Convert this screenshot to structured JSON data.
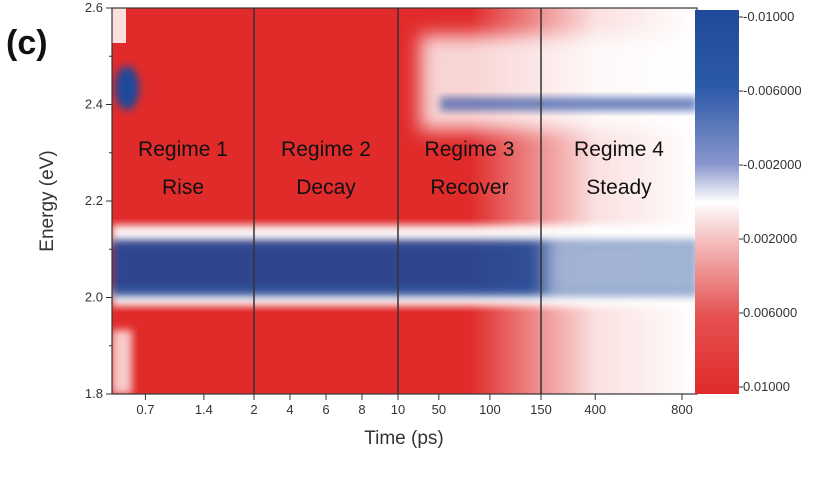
{
  "panel_label": "(c)",
  "chart_data": {
    "type": "heatmap",
    "xlabel": "Time (ps)",
    "ylabel": "Energy (eV)",
    "ylim": [
      1.8,
      2.6
    ],
    "y_ticks": [
      "1.8",
      "2.0",
      "2.2",
      "2.4",
      "2.6"
    ],
    "x_tick_labels": [
      "0.7",
      "1.4",
      "2",
      "4",
      "6",
      "8",
      "10",
      "50",
      "100",
      "150",
      "400",
      "800"
    ],
    "x_segments": [
      {
        "from": 0.3,
        "to": 2,
        "ticks": [
          0.7,
          1.4
        ]
      },
      {
        "from": 2,
        "to": 10,
        "ticks": [
          2,
          4,
          6,
          8
        ]
      },
      {
        "from": 10,
        "to": 150,
        "ticks": [
          10,
          50,
          100,
          150
        ]
      },
      {
        "from": 150,
        "to": 800,
        "ticks": [
          400,
          800
        ]
      }
    ],
    "regime_boundaries": [
      2,
      10,
      150
    ],
    "regimes": [
      {
        "name": "Regime 1",
        "phase": "Rise"
      },
      {
        "name": "Regime 2",
        "phase": "Decay"
      },
      {
        "name": "Regime 3",
        "phase": "Recover"
      },
      {
        "name": "Regime 4",
        "phase": "Steady"
      }
    ],
    "colorbar": {
      "range": [
        -0.01,
        0.01
      ],
      "labels": [
        "-0.01000",
        "-0.006000",
        "-0.002000",
        "0.002000",
        "0.006000",
        "0.01000"
      ],
      "negative_color": "#1f4a9a",
      "zero_color": "#ffffff",
      "positive_color": "#e03030"
    },
    "features": [
      {
        "type": "band",
        "energy_center": 2.05,
        "width_eV": 0.03,
        "sign": "negative"
      },
      {
        "type": "band",
        "energy_center": 2.44,
        "width_eV": 0.02,
        "sign": "negative",
        "appears_after": 10
      },
      {
        "type": "spot",
        "energy_center": 2.45,
        "sign": "negative",
        "near_time": 0.5
      }
    ]
  }
}
